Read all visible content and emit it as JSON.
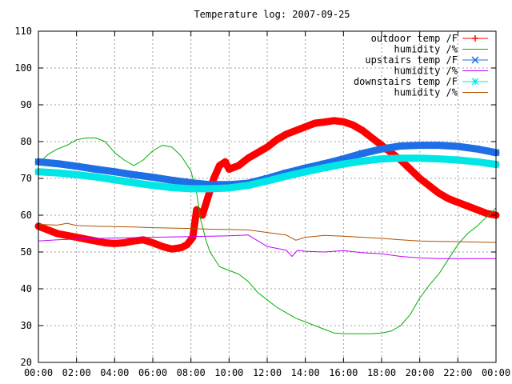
{
  "chart_data": {
    "type": "line",
    "title": "Temperature log: 2007-09-25",
    "xlabel": "",
    "ylabel": "",
    "xlim": [
      0,
      24
    ],
    "ylim": [
      20,
      110
    ],
    "grid": true,
    "legend_position": "top-right",
    "x_ticks": [
      "00:00",
      "02:00",
      "04:00",
      "06:00",
      "08:00",
      "10:00",
      "12:00",
      "14:00",
      "16:00",
      "18:00",
      "20:00",
      "22:00",
      "00:00"
    ],
    "y_ticks": [
      "20",
      "30",
      "40",
      "50",
      "60",
      "70",
      "80",
      "90",
      "100",
      "110"
    ],
    "series": [
      {
        "name": "outdoor temp /F",
        "color": "#ff0000",
        "marker": "plus",
        "x": [
          0,
          0.5,
          1,
          1.5,
          2,
          2.5,
          3,
          3.5,
          4,
          4.5,
          5,
          5.5,
          6,
          6.5,
          7,
          7.5,
          7.8,
          8.1,
          8.3,
          8.6,
          8.9,
          9.2,
          9.5,
          9.8,
          10,
          10.5,
          11,
          11.5,
          12,
          12.5,
          13,
          13.5,
          14,
          14.5,
          15,
          15.5,
          16,
          16.5,
          17,
          17.5,
          18,
          18.5,
          19,
          19.5,
          20,
          20.5,
          21,
          21.5,
          22,
          22.5,
          23,
          23.5,
          24
        ],
        "y": [
          57,
          56,
          55,
          54.5,
          54,
          53.5,
          53,
          52.5,
          52.3,
          52.5,
          53,
          53.3,
          52.5,
          51.5,
          50.8,
          51.2,
          52,
          54,
          61.5,
          60,
          65,
          70,
          73.5,
          74.5,
          72.5,
          73.5,
          75.5,
          77,
          78.5,
          80.5,
          82,
          83,
          84,
          85,
          85.3,
          85.7,
          85.4,
          84.5,
          83,
          81,
          79,
          77,
          75,
          72.5,
          70,
          68,
          66,
          64.5,
          63.5,
          62.5,
          61.5,
          60.5,
          60
        ]
      },
      {
        "name": "humidity /%",
        "color": "#00b000",
        "marker": "none",
        "x": [
          0,
          0.5,
          1,
          1.5,
          2,
          2.5,
          3,
          3.5,
          4,
          4.5,
          5,
          5.5,
          6,
          6.5,
          7,
          7.5,
          8,
          8.3,
          8.5,
          8.8,
          9,
          9.5,
          10,
          10.5,
          11,
          11.5,
          12,
          12.5,
          13,
          13.5,
          14,
          14.5,
          15,
          15.5,
          16,
          16.5,
          17,
          17.5,
          18,
          18.5,
          19,
          19.5,
          20,
          20.5,
          21,
          21.5,
          22,
          22.5,
          23,
          23.5,
          24
        ],
        "y": [
          74,
          76.5,
          78,
          79,
          80.5,
          81,
          81,
          80,
          77,
          75,
          73.5,
          75,
          77.5,
          79,
          78.5,
          76,
          72,
          66,
          59,
          53,
          50,
          46,
          45,
          44,
          42,
          39,
          37,
          35,
          33.5,
          32,
          31,
          30,
          29,
          28,
          27.8,
          27.8,
          27.8,
          27.8,
          28,
          28.5,
          30,
          33,
          37.5,
          41,
          44,
          48,
          52,
          55,
          57,
          59.5,
          62
        ]
      },
      {
        "name": "upstairs temp /F",
        "color": "#1e6ee6",
        "marker": "x",
        "x": [
          0,
          1,
          2,
          3,
          4,
          5,
          6,
          7,
          8,
          9,
          10,
          11,
          12,
          13,
          14,
          15,
          16,
          17,
          18,
          19,
          20,
          21,
          22,
          23,
          24
        ],
        "y": [
          74.5,
          74,
          73.3,
          72.5,
          71.8,
          71,
          70.3,
          69.5,
          68.8,
          68.3,
          68.3,
          68.7,
          70,
          71.5,
          72.8,
          74,
          75.3,
          76.8,
          78,
          78.8,
          79,
          79,
          78.7,
          78,
          77
        ]
      },
      {
        "name": "humidity /%",
        "color": "#c000ff",
        "marker": "none",
        "x": [
          0,
          1,
          2,
          3,
          4,
          5,
          6,
          7,
          8,
          9,
          10,
          11,
          12,
          13,
          13.3,
          13.6,
          14,
          15,
          16,
          17,
          18,
          19,
          20,
          21,
          22,
          23,
          24
        ],
        "y": [
          53,
          53.3,
          53.5,
          53.7,
          53.8,
          53.9,
          54,
          54.1,
          54.2,
          54.3,
          54.4,
          54.6,
          51.5,
          50.5,
          48.8,
          50.5,
          50.2,
          50,
          50.4,
          49.8,
          49.5,
          48.8,
          48.4,
          48.2,
          48.2,
          48.2,
          48.2
        ]
      },
      {
        "name": "downstairs temp /F",
        "color": "#00e5e5",
        "marker": "star",
        "x": [
          0,
          1,
          2,
          3,
          4,
          5,
          6,
          7,
          8,
          9,
          10,
          11,
          12,
          13,
          14,
          15,
          16,
          17,
          18,
          19,
          20,
          21,
          22,
          23,
          24
        ],
        "y": [
          71.8,
          71.5,
          71,
          70.4,
          69.6,
          68.8,
          68.1,
          67.5,
          67.2,
          67.2,
          67.4,
          68.1,
          69.3,
          70.6,
          71.8,
          72.9,
          73.9,
          74.7,
          75.3,
          75.5,
          75.5,
          75.3,
          75,
          74.5,
          73.8
        ]
      },
      {
        "name": "humidity /%",
        "color": "#b05000",
        "marker": "none",
        "x": [
          0,
          1,
          1.5,
          2,
          3,
          4,
          5,
          6,
          7,
          8,
          9,
          10,
          11,
          12,
          13,
          13.5,
          14,
          15,
          16,
          17,
          18,
          19,
          20,
          21,
          22,
          23,
          24
        ],
        "y": [
          57.5,
          57.3,
          57.8,
          57.2,
          57,
          56.9,
          56.8,
          56.6,
          56.5,
          56.4,
          56.2,
          56.1,
          56,
          55.3,
          54.6,
          53.2,
          54,
          54.5,
          54.3,
          54,
          53.7,
          53.3,
          53,
          52.9,
          52.8,
          52.7,
          52.6
        ]
      }
    ]
  }
}
